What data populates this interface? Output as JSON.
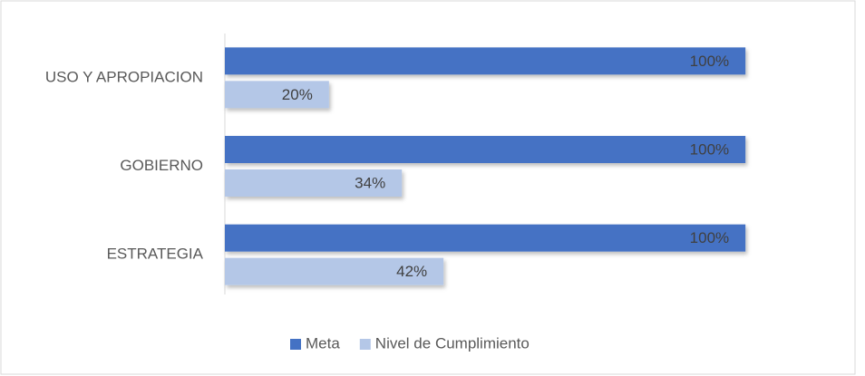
{
  "chart_data": {
    "type": "hbar",
    "categories": [
      "USO Y APROPIACION",
      "GOBIERNO",
      "ESTRATEGIA"
    ],
    "series": [
      {
        "name": "Meta",
        "color": "#4472c4",
        "values": [
          100,
          100,
          100
        ],
        "value_labels": [
          "100%",
          "100%",
          "100%"
        ]
      },
      {
        "name": "Nivel de Cumplimiento",
        "color": "#b4c7e7",
        "values": [
          20,
          34,
          42
        ],
        "value_labels": [
          "20%",
          "34%",
          "42%"
        ]
      }
    ],
    "xlim": [
      0,
      120
    ],
    "legend": "bottom"
  }
}
